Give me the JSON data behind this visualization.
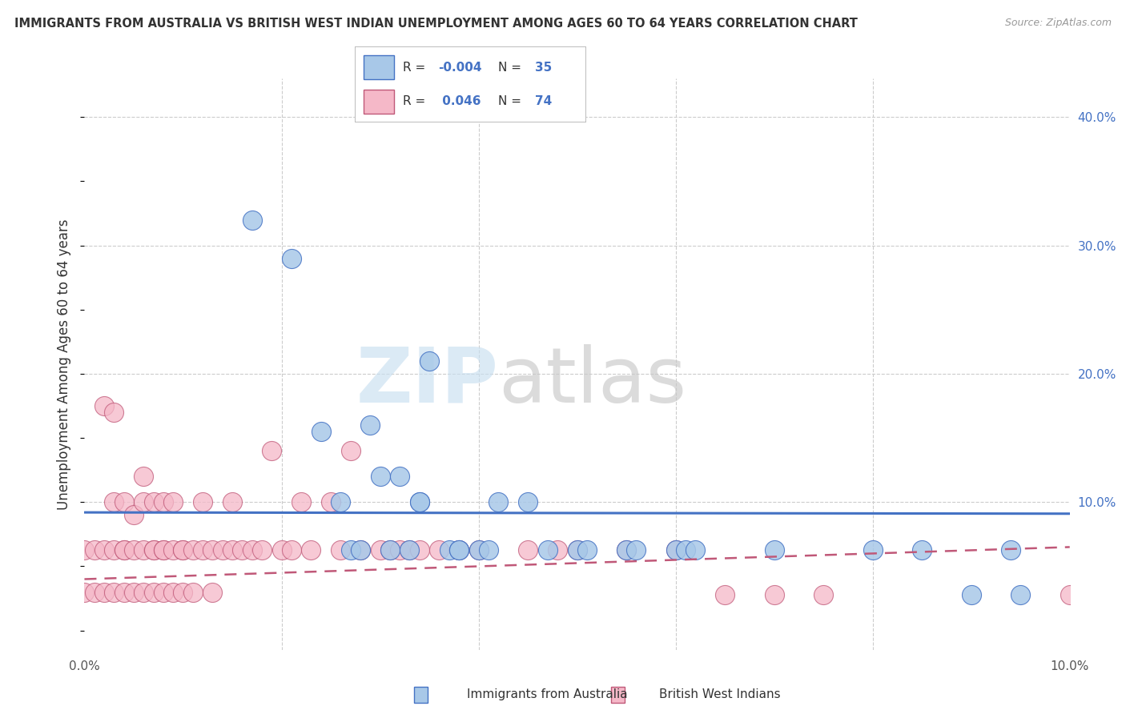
{
  "title": "IMMIGRANTS FROM AUSTRALIA VS BRITISH WEST INDIAN UNEMPLOYMENT AMONG AGES 60 TO 64 YEARS CORRELATION CHART",
  "source": "Source: ZipAtlas.com",
  "ylabel": "Unemployment Among Ages 60 to 64 years",
  "y_ticks": [
    0.0,
    0.1,
    0.2,
    0.3,
    0.4
  ],
  "y_tick_labels": [
    "",
    "10.0%",
    "20.0%",
    "30.0%",
    "40.0%"
  ],
  "xlim": [
    0.0,
    0.1
  ],
  "ylim": [
    -0.015,
    0.43
  ],
  "legend_r1_label": "R = -0.004",
  "legend_n1_label": "N = 35",
  "legend_r2_label": "R =  0.046",
  "legend_n2_label": "N = 74",
  "color_australia": "#a8c8e8",
  "color_bwi": "#f5b8c8",
  "color_australia_dark": "#4472c4",
  "color_bwi_dark": "#c05878",
  "color_tick": "#4472c4",
  "watermark_zip": "#c8dff0",
  "watermark_atlas": "#c8c8c8",
  "grid_color": "#cccccc",
  "background_color": "#ffffff",
  "aus_scatter_x": [
    0.017,
    0.021,
    0.024,
    0.026,
    0.027,
    0.028,
    0.029,
    0.03,
    0.031,
    0.032,
    0.033,
    0.034,
    0.034,
    0.035,
    0.037,
    0.038,
    0.038,
    0.04,
    0.041,
    0.042,
    0.045,
    0.047,
    0.05,
    0.051,
    0.055,
    0.056,
    0.06,
    0.061,
    0.062,
    0.07,
    0.08,
    0.085,
    0.09,
    0.094,
    0.095
  ],
  "aus_scatter_y": [
    0.32,
    0.29,
    0.155,
    0.1,
    0.063,
    0.063,
    0.16,
    0.12,
    0.063,
    0.12,
    0.063,
    0.1,
    0.1,
    0.21,
    0.063,
    0.063,
    0.063,
    0.063,
    0.063,
    0.1,
    0.1,
    0.063,
    0.063,
    0.063,
    0.063,
    0.063,
    0.063,
    0.063,
    0.063,
    0.063,
    0.063,
    0.063,
    0.028,
    0.063,
    0.028
  ],
  "bwi_scatter_x": [
    0.0,
    0.0,
    0.001,
    0.001,
    0.002,
    0.002,
    0.002,
    0.003,
    0.003,
    0.003,
    0.003,
    0.004,
    0.004,
    0.004,
    0.004,
    0.005,
    0.005,
    0.005,
    0.006,
    0.006,
    0.006,
    0.006,
    0.007,
    0.007,
    0.007,
    0.007,
    0.008,
    0.008,
    0.008,
    0.008,
    0.009,
    0.009,
    0.009,
    0.01,
    0.01,
    0.01,
    0.011,
    0.011,
    0.012,
    0.012,
    0.013,
    0.013,
    0.014,
    0.015,
    0.015,
    0.016,
    0.017,
    0.018,
    0.019,
    0.02,
    0.021,
    0.022,
    0.023,
    0.025,
    0.026,
    0.027,
    0.028,
    0.03,
    0.031,
    0.032,
    0.033,
    0.034,
    0.036,
    0.038,
    0.04,
    0.045,
    0.048,
    0.05,
    0.055,
    0.06,
    0.065,
    0.07,
    0.075,
    0.1
  ],
  "bwi_scatter_y": [
    0.063,
    0.03,
    0.063,
    0.03,
    0.063,
    0.03,
    0.175,
    0.1,
    0.063,
    0.03,
    0.17,
    0.1,
    0.063,
    0.03,
    0.063,
    0.063,
    0.09,
    0.03,
    0.12,
    0.063,
    0.03,
    0.1,
    0.063,
    0.03,
    0.1,
    0.063,
    0.063,
    0.03,
    0.1,
    0.063,
    0.063,
    0.03,
    0.1,
    0.063,
    0.03,
    0.063,
    0.063,
    0.03,
    0.063,
    0.1,
    0.063,
    0.03,
    0.063,
    0.063,
    0.1,
    0.063,
    0.063,
    0.063,
    0.14,
    0.063,
    0.063,
    0.1,
    0.063,
    0.1,
    0.063,
    0.14,
    0.063,
    0.063,
    0.063,
    0.063,
    0.063,
    0.063,
    0.063,
    0.063,
    0.063,
    0.063,
    0.063,
    0.063,
    0.063,
    0.063,
    0.028,
    0.028,
    0.028,
    0.028
  ],
  "aus_trend_x": [
    0.0,
    0.1
  ],
  "aus_trend_y": [
    0.092,
    0.091
  ],
  "bwi_trend_x": [
    0.0,
    0.1
  ],
  "bwi_trend_y": [
    0.04,
    0.065
  ]
}
